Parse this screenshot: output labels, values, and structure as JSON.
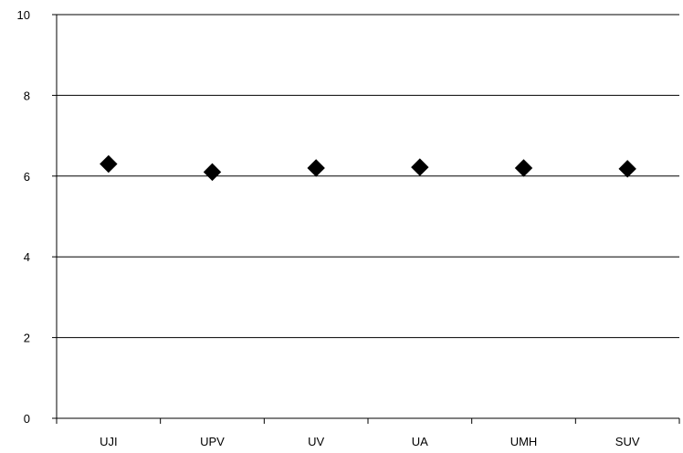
{
  "chart_data": {
    "type": "scatter",
    "title": "",
    "xlabel": "",
    "ylabel": "",
    "categories": [
      "UJI",
      "UPV",
      "UV",
      "UA",
      "UMH",
      "SUV"
    ],
    "series": [
      {
        "values": [
          6.3,
          6.1,
          6.2,
          6.22,
          6.2,
          6.18
        ],
        "marker": "diamond",
        "color": "#000000"
      }
    ],
    "ylim": [
      0,
      10
    ],
    "yticks": [
      0,
      2,
      4,
      6,
      8,
      10
    ],
    "grid": true,
    "legend": "none"
  }
}
